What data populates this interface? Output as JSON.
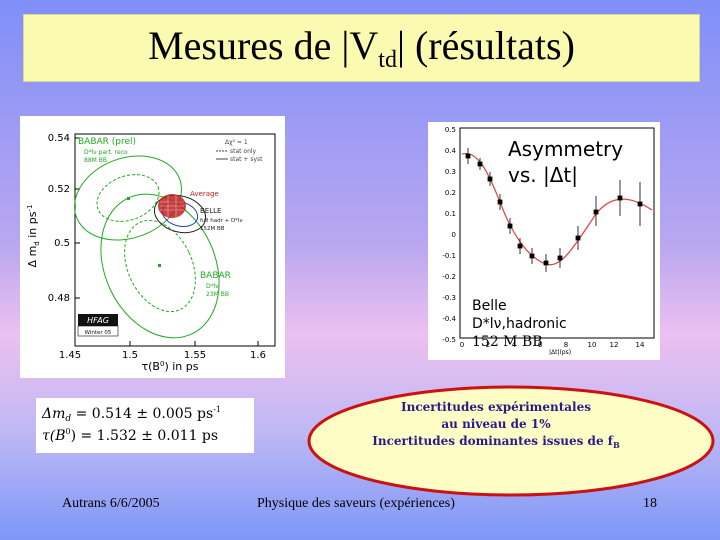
{
  "slide": {
    "title_prefix": "Mesures de |V",
    "title_sub": "td",
    "title_suffix": "| (résultats)"
  },
  "left_plot": {
    "y_axis_label": "Δ m",
    "y_axis_sub": "d",
    "y_axis_unit": " in ps",
    "y_axis_unit_sup": "-1",
    "x_axis_label": "τ(B",
    "x_axis_sup": "0",
    "x_axis_unit": ") in ps",
    "y_ticks": [
      "0.54",
      "0.52",
      "0.5",
      "0.48"
    ],
    "x_ticks": [
      "1.45",
      "1.5",
      "1.55",
      "1.6"
    ],
    "legend_chi": "Δχ² = 1",
    "legend_stat": "stat only",
    "legend_total": "stat + syst",
    "babar_top": "BABAR (prel)",
    "babar_top_l1": "D*lν part. reco",
    "babar_top_l2": "88M BB",
    "average": "Average",
    "belle_label": "BELLE",
    "belle_l1": "full hadr + D*lν",
    "belle_l2": "152M BB",
    "babar_bottom": "BABAR",
    "babar_bottom_l1": "D*lν",
    "babar_bottom_l2": "23M BB",
    "hfag": "HFAG",
    "hfag_sub": "Winter 05"
  },
  "right_plot": {
    "title_line1": "Asymmetry",
    "title_line2": "vs. |Δt|",
    "y_ticks": [
      "0.5",
      "0.4",
      "0.3",
      "0.2",
      "0.1",
      "0",
      "-0.1",
      "-0.2",
      "-0.3",
      "-0.4",
      "-0.5"
    ],
    "x_ticks": [
      "0",
      "2",
      "4",
      "6",
      "8",
      "10",
      "12",
      "14"
    ],
    "x_axis_label": "|Δt|(ps)",
    "label_line1": "Belle",
    "label_line2": "D*lν,hadronic",
    "label_line3": "152 M BB"
  },
  "formula": {
    "line1_lhs": "Δm",
    "line1_sub": "d",
    "line1_rhs": " = 0.514 ± 0.005 ps",
    "line1_sup": "-1",
    "line2_lhs": "τ(B",
    "line2_sup": "0",
    "line2_rhs": ") = 1.532 ± 0.011 ps"
  },
  "callout": {
    "line1": "Incertitudes expérimentales",
    "line2": "au niveau de 1%",
    "line3_prefix": "Incertitudes dominantes issues de f",
    "line3_sub": "B"
  },
  "footer": {
    "left": "Autrans 6/6/2005",
    "center": "Physique des saveurs (expériences)",
    "right": "18"
  },
  "colors": {
    "title_bg": "#fafab0",
    "callout_fill": "#fefdc6",
    "callout_border": "#cc1111",
    "callout_text": "#2a1a8a",
    "babar_green": "#22aa22",
    "belle_red": "#c02020",
    "curve_red": "#e04040"
  }
}
